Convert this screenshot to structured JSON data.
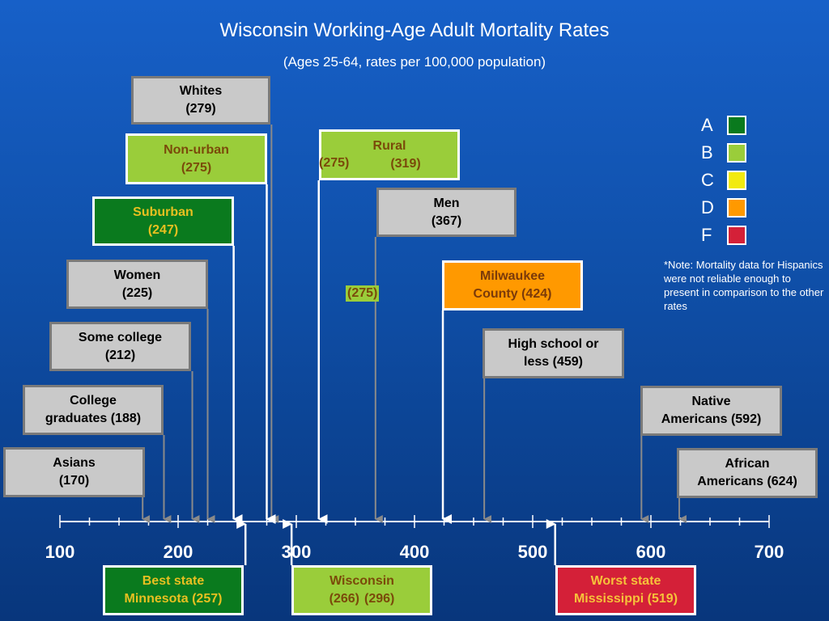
{
  "title": "Wisconsin Working-Age Adult Mortality Rates",
  "subtitle": "(Ages 25-64, rates per 100,000 population)",
  "axis": {
    "min": 100,
    "max": 700,
    "tick_labels": [
      "100",
      "200",
      "300",
      "400",
      "500",
      "600",
      "700"
    ]
  },
  "groups": [
    {
      "line1": "Whites",
      "line2": "(279)",
      "value": 279,
      "style": "gray"
    },
    {
      "line1": "Non-urban",
      "line2": "(275)",
      "value": 275,
      "style": "lightgreen"
    },
    {
      "line1": "Rural",
      "line2": "(319)",
      "value": 319,
      "style": "lightgreen"
    },
    {
      "line1": "Suburban",
      "line2": "(247)",
      "value": 247,
      "style": "darkgreen"
    },
    {
      "line1": "Men",
      "line2": "(367)",
      "value": 367,
      "style": "gray"
    },
    {
      "line1": "Women",
      "line2": "(225)",
      "value": 225,
      "style": "gray"
    },
    {
      "line1": "Milwaukee",
      "line2": "County (424)",
      "value": 424,
      "style": "orange"
    },
    {
      "line1": "Some college",
      "line2": "(212)",
      "value": 212,
      "style": "gray"
    },
    {
      "line1": "High school or",
      "line2": "less (459)",
      "value": 459,
      "style": "gray"
    },
    {
      "line1": "College",
      "line2": "graduates (188)",
      "value": 188,
      "style": "gray"
    },
    {
      "line1": "Native",
      "line2": "Americans (592)",
      "value": 592,
      "style": "gray"
    },
    {
      "line1": "Asians",
      "line2": "(170)",
      "value": 170,
      "style": "gray"
    },
    {
      "line1": "African",
      "line2": "Americans (624)",
      "value": 624,
      "style": "gray"
    }
  ],
  "extra_labels": {
    "rural_left": "(275)",
    "men_side": "(275)"
  },
  "bottom": [
    {
      "line1": "Best state",
      "line2": "Minnesota (257)",
      "value": 257,
      "style": "darkgreen"
    },
    {
      "line1": "Wisconsin",
      "line2a": "(266)",
      "line2b": "(296)",
      "values": [
        266,
        296
      ],
      "style": "lightgreen"
    },
    {
      "line1": "Worst state",
      "line2": "Mississippi (519)",
      "value": 519,
      "style": "red"
    }
  ],
  "legend": [
    {
      "letter": "A",
      "color": "#0a7a1e"
    },
    {
      "letter": "B",
      "color": "#9acd3a"
    },
    {
      "letter": "C",
      "color": "#f2ea10"
    },
    {
      "letter": "D",
      "color": "#ff9900"
    },
    {
      "letter": "F",
      "color": "#d42038"
    }
  ],
  "note": "*Note:  Mortality data for Hispanics were not reliable enough to present in comparison to the other rates"
}
